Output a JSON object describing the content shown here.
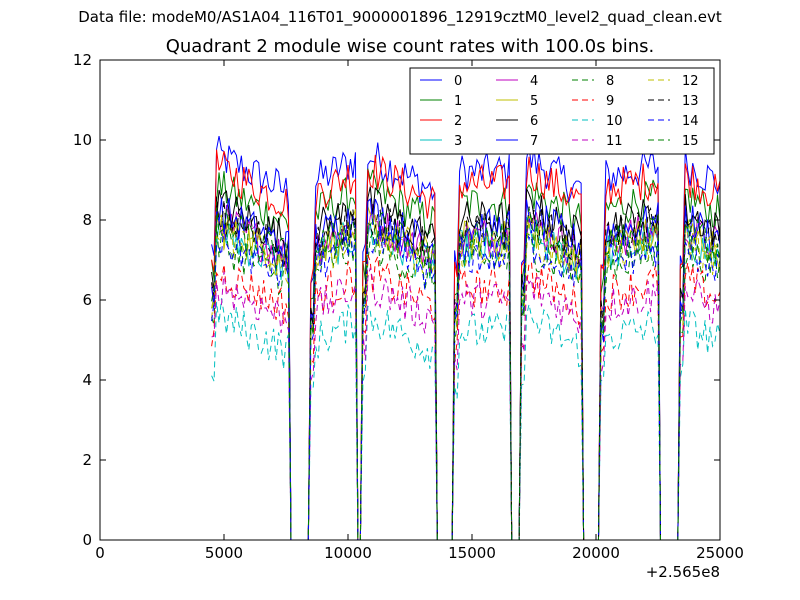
{
  "figure": {
    "suptitle": "Data file: modeM0/AS1A04_116T01_9000001896_12919cztM0_level2_quad_clean.evt"
  },
  "chart_data": {
    "type": "line",
    "title": "Quadrant 2 module wise count rates with 100.0s bins.",
    "xlabel": "",
    "ylabel": "",
    "xlim": [
      0,
      25000
    ],
    "ylim": [
      0,
      12
    ],
    "x_offset_label": "+2.565e8",
    "xticks": [
      0,
      5000,
      10000,
      15000,
      20000,
      25000
    ],
    "xtick_labels": [
      "0",
      "5000",
      "10000",
      "15000",
      "20000",
      "25000"
    ],
    "yticks": [
      0,
      2,
      4,
      6,
      8,
      10,
      12
    ],
    "ytick_labels": [
      "0",
      "2",
      "4",
      "6",
      "8",
      "10",
      "12"
    ],
    "grid": false,
    "legend_placement": "top-right",
    "legend_columns": 4,
    "bin_width": 100,
    "segments": [
      {
        "start": 4500,
        "end": 7600,
        "trend": -1.0
      },
      {
        "start": 8500,
        "end": 10300,
        "trend": 0.6
      },
      {
        "start": 10600,
        "end": 13500,
        "trend": -1.0
      },
      {
        "start": 14300,
        "end": 16500,
        "trend": 0.0
      },
      {
        "start": 17000,
        "end": 19400,
        "trend": -0.9
      },
      {
        "start": 20200,
        "end": 22500,
        "trend": 0.3
      },
      {
        "start": 23400,
        "end": 25000,
        "trend": -0.6
      }
    ],
    "series": [
      {
        "name": "0",
        "color": "#0000ff",
        "dash": "solid",
        "level": 9.2
      },
      {
        "name": "1",
        "color": "#008000",
        "dash": "solid",
        "level": 8.4
      },
      {
        "name": "2",
        "color": "#ff0000",
        "dash": "solid",
        "level": 8.9
      },
      {
        "name": "3",
        "color": "#00bfbf",
        "dash": "solid",
        "level": 7.3
      },
      {
        "name": "4",
        "color": "#bf00bf",
        "dash": "solid",
        "level": 7.6
      },
      {
        "name": "5",
        "color": "#bfbf00",
        "dash": "solid",
        "level": 7.5
      },
      {
        "name": "6",
        "color": "#000000",
        "dash": "solid",
        "level": 8.0
      },
      {
        "name": "7",
        "color": "#0000ff",
        "dash": "solid",
        "level": 7.8
      },
      {
        "name": "8",
        "color": "#008000",
        "dash": "dashed",
        "level": 7.0
      },
      {
        "name": "9",
        "color": "#ff0000",
        "dash": "dashed",
        "level": 6.3
      },
      {
        "name": "10",
        "color": "#00bfbf",
        "dash": "dashed",
        "level": 5.2
      },
      {
        "name": "11",
        "color": "#bf00bf",
        "dash": "dashed",
        "level": 6.0
      },
      {
        "name": "12",
        "color": "#bfbf00",
        "dash": "dashed",
        "level": 7.3
      },
      {
        "name": "13",
        "color": "#000000",
        "dash": "dashed",
        "level": 7.7
      },
      {
        "name": "14",
        "color": "#0000ff",
        "dash": "dashed",
        "level": 7.1
      },
      {
        "name": "15",
        "color": "#008000",
        "dash": "dashed",
        "level": 7.5
      }
    ]
  }
}
